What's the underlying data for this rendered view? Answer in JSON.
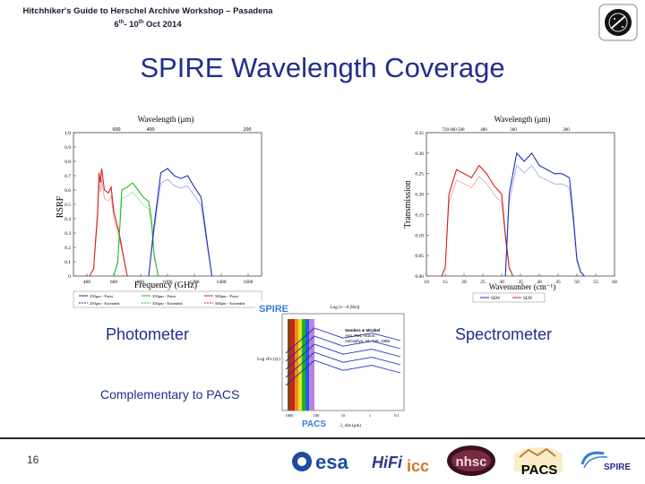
{
  "header": {
    "line1": "Hitchhiker's Guide to Herschel Archive Workshop – Pasadena",
    "date_day_start": "6",
    "date_sup1": "th",
    "date_sep": "- 10",
    "date_sup2": "th",
    "date_rest": " Oct 2014"
  },
  "slide": {
    "title": "SPIRE Wavelength Coverage",
    "photometer_label": "Photometer",
    "spectrometer_label": "Spectrometer",
    "complementary": "Complementary to PACS",
    "page_number": "16"
  },
  "colors": {
    "title": "#1f2e8c",
    "red": "#d42020",
    "green": "#1fbf1f",
    "blue": "#1f2fbf"
  },
  "chart_data": [
    {
      "type": "line",
      "name": "photometer-rsrf",
      "title": "",
      "top_axis_label": "Wavelength (μm)",
      "top_ticks": [
        "600",
        "400",
        "200"
      ],
      "xlabel": "Frequency (GHz)",
      "ylabel": "RSRF",
      "x_ticks": [
        "400",
        "600",
        "800",
        "1000",
        "1200",
        "1400",
        "1600"
      ],
      "xlim": [
        300,
        1700
      ],
      "ylim": [
        0,
        1.0
      ],
      "y_ticks": [
        "0",
        "0.1",
        "0.2",
        "0.3",
        "0.4",
        "0.5",
        "0.6",
        "0.7",
        "0.8",
        "0.9",
        "1.0"
      ],
      "legend": [
        "250μm - Point",
        "350μm - Point",
        "500μm - Point",
        "250μm - Extended",
        "350μm - Extended",
        "500μm - Extended"
      ],
      "series": [
        {
          "name": "500μm",
          "color": "#d42020",
          "x": [
            420,
            450,
            480,
            490,
            500,
            510,
            530,
            560,
            580,
            600,
            640,
            680,
            700
          ],
          "y": [
            0,
            0.05,
            0.45,
            0.72,
            0.65,
            0.75,
            0.6,
            0.58,
            0.62,
            0.45,
            0.3,
            0.1,
            0
          ]
        },
        {
          "name": "350μm",
          "color": "#1fbf1f",
          "x": [
            600,
            630,
            660,
            700,
            740,
            780,
            820,
            860,
            880,
            900,
            930
          ],
          "y": [
            0,
            0.1,
            0.6,
            0.62,
            0.65,
            0.6,
            0.55,
            0.52,
            0.4,
            0.15,
            0
          ]
        },
        {
          "name": "250μm",
          "color": "#1f2fbf",
          "x": [
            860,
            900,
            950,
            1000,
            1050,
            1100,
            1150,
            1200,
            1250,
            1300,
            1330
          ],
          "y": [
            0,
            0.35,
            0.72,
            0.75,
            0.7,
            0.68,
            0.7,
            0.62,
            0.55,
            0.2,
            0
          ]
        }
      ]
    },
    {
      "type": "line",
      "name": "spectrometer-transmission",
      "top_axis_label": "Wavelength (μm)",
      "top_ticks": [
        "720 600 500",
        "400",
        "300",
        "200"
      ],
      "xlabel": "Wavenumber (cm⁻¹)",
      "ylabel": "Transmission",
      "x_ticks": [
        "10",
        "15",
        "20",
        "25",
        "30",
        "35",
        "40",
        "45",
        "50",
        "55",
        "60"
      ],
      "xlim": [
        10,
        60
      ],
      "ylim": [
        0,
        0.35
      ],
      "y_ticks": [
        "0.00",
        "0.05",
        "0.10",
        "0.15",
        "0.20",
        "0.25",
        "0.30",
        "0.35"
      ],
      "legend": [
        "SSW",
        "SLW"
      ],
      "series": [
        {
          "name": "SLW",
          "color": "#d42020",
          "x": [
            14,
            15,
            16,
            18,
            20,
            22,
            24,
            26,
            28,
            30,
            31,
            32,
            33
          ],
          "y": [
            0,
            0.02,
            0.2,
            0.26,
            0.25,
            0.24,
            0.27,
            0.25,
            0.22,
            0.2,
            0.1,
            0.02,
            0
          ]
        },
        {
          "name": "SSW",
          "color": "#1f2fbf",
          "x": [
            31,
            32,
            34,
            36,
            38,
            40,
            42,
            44,
            46,
            48,
            49,
            50,
            51,
            52
          ],
          "y": [
            0,
            0.2,
            0.3,
            0.28,
            0.3,
            0.27,
            0.26,
            0.25,
            0.25,
            0.24,
            0.15,
            0.04,
            0.01,
            0
          ]
        }
      ]
    },
    {
      "type": "line",
      "name": "sed-diagram",
      "top_label": "SPIRE",
      "bottom_label": "PACS",
      "top_axis_label": "Log (ν—δ (Hz))",
      "ylabel": "Log νFν (Jy)",
      "xlabel": "λ_obs (μm)",
      "x_ticks": [
        "1000",
        "100",
        "10",
        "1",
        "0.1"
      ],
      "annotation": [
        "Sanders & Mirabel",
        "Ann. Rev. Astron.",
        "Astrophys. 34, 749, 1996"
      ],
      "series": [
        {
          "name": "sed",
          "color": "#1f2fbf",
          "x": [
            0,
            1,
            2,
            3,
            4
          ],
          "y": [
            1,
            3,
            2.2,
            2.6,
            2.0
          ]
        }
      ]
    }
  ],
  "footer": {
    "logos": [
      {
        "name": "esa",
        "text": "esa"
      },
      {
        "name": "hifi",
        "text": "HiFi"
      },
      {
        "name": "icc",
        "text": "icc"
      },
      {
        "name": "nhsc",
        "text": "nhsc"
      },
      {
        "name": "pacs",
        "text": "PACS"
      },
      {
        "name": "spire",
        "text": "SPIRE"
      }
    ]
  }
}
